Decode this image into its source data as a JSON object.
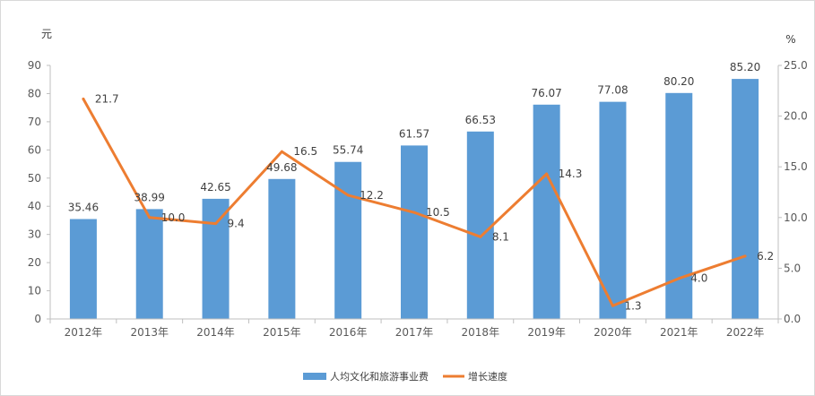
{
  "chart_data": {
    "type": "bar",
    "categories": [
      "2012年",
      "2013年",
      "2014年",
      "2015年",
      "2016年",
      "2017年",
      "2018年",
      "2019年",
      "2020年",
      "2021年",
      "2022年"
    ],
    "series": [
      {
        "name": "人均文化和旅游事业费",
        "type": "bar",
        "axis": "left",
        "color": "#5b9bd5",
        "values": [
          35.46,
          38.99,
          42.65,
          49.68,
          55.74,
          61.57,
          66.53,
          76.07,
          77.08,
          80.2,
          85.2
        ],
        "labels": [
          "35.46",
          "38.99",
          "42.65",
          "49.68",
          "55.74",
          "61.57",
          "66.53",
          "76.07",
          "77.08",
          "80.20",
          "85.20"
        ]
      },
      {
        "name": "增长速度",
        "type": "line",
        "axis": "right",
        "color": "#ed7d31",
        "values": [
          21.7,
          10.0,
          9.4,
          16.5,
          12.2,
          10.5,
          8.1,
          14.3,
          1.3,
          4.0,
          6.2
        ],
        "labels": [
          "21.7",
          "10.0",
          "9.4",
          "16.5",
          "12.2",
          "10.5",
          "8.1",
          "14.3",
          "1.3",
          "4.0",
          "6.2"
        ]
      }
    ],
    "y_left": {
      "unit": "元",
      "min": 0,
      "max": 90,
      "step": 10,
      "ticks": [
        "0",
        "10",
        "20",
        "30",
        "40",
        "50",
        "60",
        "70",
        "80",
        "90"
      ]
    },
    "y_right": {
      "unit": "%",
      "min": 0,
      "max": 25,
      "step": 5,
      "ticks": [
        "0.0",
        "5.0",
        "10.0",
        "15.0",
        "20.0",
        "25.0"
      ]
    },
    "legend_position": "bottom",
    "grid": false
  }
}
